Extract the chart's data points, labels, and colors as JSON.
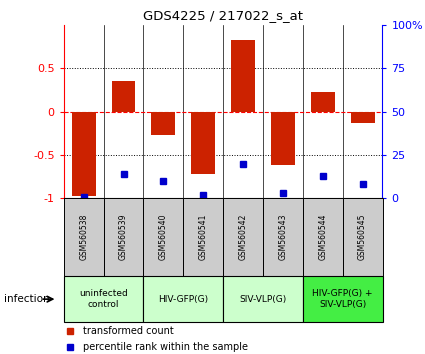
{
  "title": "GDS4225 / 217022_s_at",
  "samples": [
    "GSM560538",
    "GSM560539",
    "GSM560540",
    "GSM560541",
    "GSM560542",
    "GSM560543",
    "GSM560544",
    "GSM560545"
  ],
  "transformed_counts": [
    -0.97,
    0.35,
    -0.27,
    -0.72,
    0.82,
    -0.62,
    0.22,
    -0.13
  ],
  "percentile_ranks": [
    1,
    14,
    10,
    2,
    20,
    3,
    13,
    8
  ],
  "bar_color": "#cc2200",
  "dot_color": "#0000cc",
  "groups": [
    {
      "label": "uninfected\ncontrol",
      "start": 0,
      "end": 2,
      "color": "#ccffcc"
    },
    {
      "label": "HIV-GFP(G)",
      "start": 2,
      "end": 4,
      "color": "#ccffcc"
    },
    {
      "label": "SIV-VLP(G)",
      "start": 4,
      "end": 6,
      "color": "#ccffcc"
    },
    {
      "label": "HIV-GFP(G) +\nSIV-VLP(G)",
      "start": 6,
      "end": 8,
      "color": "#44ee44"
    }
  ],
  "sample_box_color": "#cccccc",
  "ylim": [
    -1.0,
    1.0
  ],
  "yticks_left": [
    -1.0,
    -0.5,
    0.0,
    0.5
  ],
  "ytick_labels_left": [
    "-1",
    "-0.5",
    "0",
    "0.5"
  ],
  "yticks_right": [
    0,
    25,
    50,
    75,
    100
  ],
  "right_ylim": [
    0,
    100
  ],
  "infection_label": "infection",
  "legend_red": "transformed count",
  "legend_blue": "percentile rank within the sample"
}
